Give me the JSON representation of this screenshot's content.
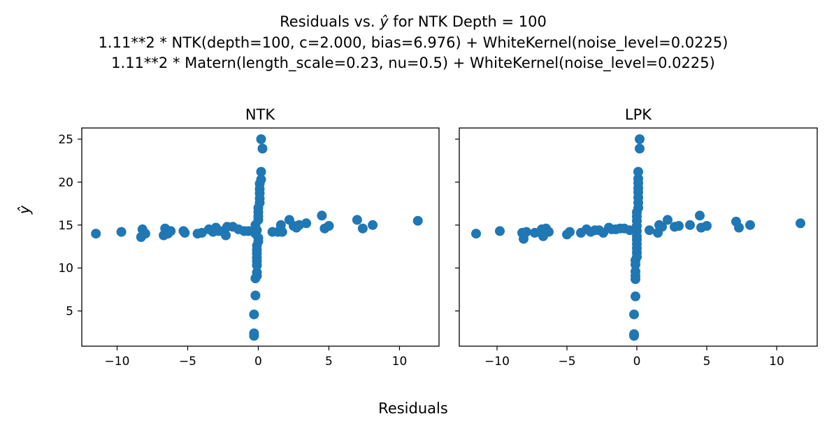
{
  "figure": {
    "title_line1_prefix": "Residuals vs. ",
    "title_line1_symbol": "ŷ",
    "title_line1_suffix": " for NTK Depth = 100",
    "title_line2": "1.11**2 * NTK(depth=100, c=2.000, bias=6.976) + WhiteKernel(noise_level=0.0225)",
    "title_line3": "1.11**2 * Matern(length_scale=0.23, nu=0.5) + WhiteKernel(noise_level=0.0225)",
    "xlabel": "Residuals",
    "ylabel": "ŷ",
    "marker_color": "#1f77b4"
  },
  "chart_data": [
    {
      "type": "scatter",
      "title": "NTK",
      "xlim": [
        -12.5,
        12.8
      ],
      "ylim": [
        0.9,
        26.3
      ],
      "xticks": [
        -10,
        -5,
        0,
        5,
        10
      ],
      "xtick_labels": [
        "−10",
        "−5",
        "0",
        "5",
        "10"
      ],
      "yticks": [
        5,
        10,
        15,
        20,
        25
      ],
      "ytick_labels": [
        "5",
        "10",
        "15",
        "20",
        "25"
      ],
      "grid": false,
      "points": [
        [
          -11.5,
          14.0
        ],
        [
          -9.7,
          14.2
        ],
        [
          -8.2,
          14.5
        ],
        [
          -8.0,
          14.0
        ],
        [
          -8.3,
          13.6
        ],
        [
          -6.7,
          13.8
        ],
        [
          -6.6,
          14.6
        ],
        [
          -6.4,
          14.0
        ],
        [
          -6.2,
          14.3
        ],
        [
          -5.3,
          14.3
        ],
        [
          -5.2,
          14.1
        ],
        [
          -4.3,
          14.0
        ],
        [
          -4.0,
          14.1
        ],
        [
          -3.5,
          14.5
        ],
        [
          -3.2,
          14.2
        ],
        [
          -3.0,
          14.7
        ],
        [
          -2.8,
          14.3
        ],
        [
          -2.5,
          14.3
        ],
        [
          -2.3,
          13.8
        ],
        [
          -2.2,
          14.8
        ],
        [
          -1.8,
          14.8
        ],
        [
          -1.4,
          14.5
        ],
        [
          -1.0,
          14.3
        ],
        [
          -0.7,
          14.3
        ],
        [
          1.0,
          14.2
        ],
        [
          1.4,
          14.2
        ],
        [
          1.6,
          15.0
        ],
        [
          1.7,
          14.2
        ],
        [
          2.2,
          15.6
        ],
        [
          2.5,
          14.9
        ],
        [
          2.7,
          14.7
        ],
        [
          2.9,
          15.0
        ],
        [
          3.4,
          15.2
        ],
        [
          4.5,
          16.1
        ],
        [
          4.7,
          14.6
        ],
        [
          5.0,
          14.9
        ],
        [
          7.0,
          15.6
        ],
        [
          7.4,
          14.6
        ],
        [
          8.1,
          15.0
        ],
        [
          11.3,
          15.5
        ],
        [
          -0.3,
          2.1
        ],
        [
          -0.3,
          2.4
        ],
        [
          -0.3,
          4.6
        ],
        [
          -0.2,
          6.8
        ],
        [
          -0.2,
          8.8
        ],
        [
          -0.1,
          9.1
        ],
        [
          -0.1,
          9.5
        ],
        [
          -0.1,
          10.3
        ],
        [
          -0.1,
          10.8
        ],
        [
          -0.1,
          11.2
        ],
        [
          -0.1,
          11.7
        ],
        [
          -0.1,
          12.1
        ],
        [
          -0.1,
          12.6
        ],
        [
          0.0,
          13.1
        ],
        [
          0.0,
          13.5
        ],
        [
          -0.2,
          14.0
        ],
        [
          -0.1,
          14.4
        ],
        [
          -0.2,
          15.0
        ],
        [
          0.0,
          15.6
        ],
        [
          0.0,
          16.0
        ],
        [
          0.0,
          16.5
        ],
        [
          0.0,
          17.0
        ],
        [
          0.1,
          17.6
        ],
        [
          0.1,
          18.1
        ],
        [
          0.1,
          18.7
        ],
        [
          0.1,
          19.2
        ],
        [
          0.1,
          19.8
        ],
        [
          0.2,
          20.3
        ],
        [
          0.2,
          21.2
        ],
        [
          0.3,
          23.9
        ],
        [
          0.2,
          25.0
        ]
      ]
    },
    {
      "type": "scatter",
      "title": "LPK",
      "xlim": [
        -12.7,
        12.9
      ],
      "ylim": [
        0.9,
        26.3
      ],
      "xticks": [
        -10,
        -5,
        0,
        5,
        10
      ],
      "xtick_labels": [
        "−10",
        "−5",
        "0",
        "5",
        "10"
      ],
      "yticks": [
        5,
        10,
        15,
        20,
        25
      ],
      "ytick_labels": [],
      "grid": false,
      "points": [
        [
          -11.5,
          14.0
        ],
        [
          -9.8,
          14.3
        ],
        [
          -8.2,
          14.1
        ],
        [
          -8.1,
          13.4
        ],
        [
          -7.9,
          14.2
        ],
        [
          -7.3,
          14.1
        ],
        [
          -6.8,
          14.5
        ],
        [
          -6.7,
          13.7
        ],
        [
          -6.5,
          14.6
        ],
        [
          -6.3,
          14.2
        ],
        [
          -5.0,
          13.9
        ],
        [
          -4.8,
          14.2
        ],
        [
          -4.0,
          14.1
        ],
        [
          -3.6,
          14.5
        ],
        [
          -3.3,
          14.2
        ],
        [
          -3.0,
          14.4
        ],
        [
          -2.7,
          14.4
        ],
        [
          -2.4,
          14.1
        ],
        [
          -2.0,
          14.7
        ],
        [
          -1.8,
          14.5
        ],
        [
          -1.5,
          14.5
        ],
        [
          -1.2,
          14.6
        ],
        [
          -0.9,
          14.6
        ],
        [
          -0.5,
          14.4
        ],
        [
          0.9,
          14.4
        ],
        [
          1.5,
          14.1
        ],
        [
          1.6,
          15.0
        ],
        [
          1.8,
          14.8
        ],
        [
          2.2,
          15.6
        ],
        [
          2.7,
          14.8
        ],
        [
          3.0,
          14.9
        ],
        [
          3.8,
          15.0
        ],
        [
          4.5,
          16.1
        ],
        [
          4.6,
          14.7
        ],
        [
          5.0,
          14.9
        ],
        [
          7.1,
          15.4
        ],
        [
          7.3,
          14.7
        ],
        [
          8.1,
          15.0
        ],
        [
          11.7,
          15.2
        ],
        [
          -0.2,
          2.1
        ],
        [
          -0.2,
          2.3
        ],
        [
          -0.2,
          4.6
        ],
        [
          -0.1,
          6.7
        ],
        [
          -0.1,
          8.7
        ],
        [
          -0.1,
          9.1
        ],
        [
          -0.1,
          9.6
        ],
        [
          -0.1,
          10.4
        ],
        [
          -0.1,
          10.9
        ],
        [
          0.0,
          11.3
        ],
        [
          0.0,
          11.8
        ],
        [
          0.0,
          12.3
        ],
        [
          0.0,
          12.8
        ],
        [
          0.0,
          13.3
        ],
        [
          0.0,
          13.7
        ],
        [
          0.0,
          14.3
        ],
        [
          0.0,
          14.9
        ],
        [
          0.0,
          15.5
        ],
        [
          0.0,
          16.0
        ],
        [
          0.0,
          16.5
        ],
        [
          0.1,
          17.0
        ],
        [
          0.1,
          17.6
        ],
        [
          0.1,
          18.2
        ],
        [
          0.1,
          18.8
        ],
        [
          0.1,
          19.3
        ],
        [
          0.1,
          19.9
        ],
        [
          0.1,
          20.4
        ],
        [
          0.1,
          21.2
        ],
        [
          0.2,
          23.9
        ],
        [
          0.2,
          25.0
        ]
      ]
    }
  ]
}
